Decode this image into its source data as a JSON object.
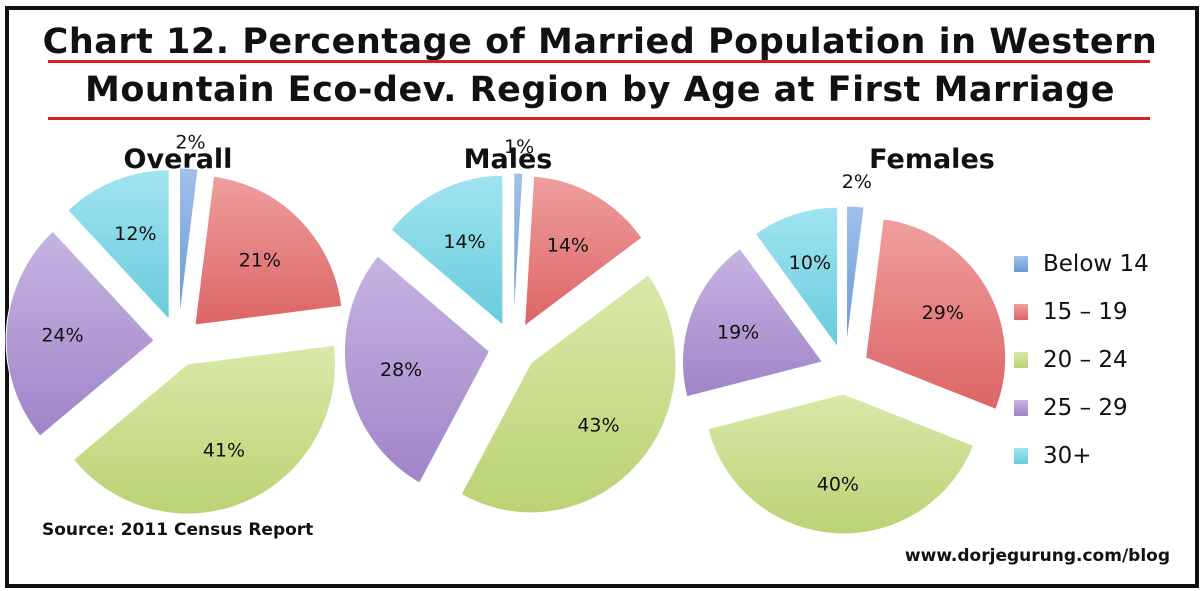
{
  "title_line1": "Chart 12. Percentage of Married Population in Western",
  "title_line2": "Mountain Eco-dev. Region by Age at First Marriage",
  "source": "Source: 2011 Census Report",
  "url": "www.dorjegurung.com/blog",
  "colors": {
    "title_rule": "#d92020",
    "Below 14": "#6f9fe0",
    "15 – 19": "#e86a6a",
    "20 – 24": "#c5dd7a",
    "25 – 29": "#a88bd2",
    "30+": "#6ed6e8"
  },
  "chart_data": [
    {
      "type": "pie",
      "title": "Overall",
      "categories": [
        "Below 14",
        "15 – 19",
        "20 – 24",
        "25 – 29",
        "30+"
      ],
      "values": [
        2,
        21,
        41,
        24,
        12
      ],
      "labels": [
        "2%",
        "21%",
        "41%",
        "24%",
        "12%"
      ],
      "exploded": true
    },
    {
      "type": "pie",
      "title": "Males",
      "categories": [
        "Below 14",
        "15 – 19",
        "20 – 24",
        "25 – 29",
        "30+"
      ],
      "values": [
        1,
        14,
        43,
        28,
        14
      ],
      "labels": [
        "1%",
        "14%",
        "43%",
        "28%",
        "14%"
      ],
      "exploded": true
    },
    {
      "type": "pie",
      "title": "Females",
      "categories": [
        "Below 14",
        "15 – 19",
        "20 – 24",
        "25 – 29",
        "30+"
      ],
      "values": [
        2,
        29,
        40,
        19,
        10
      ],
      "labels": [
        "2%",
        "29%",
        "40%",
        "19%",
        "10%"
      ],
      "exploded": true
    }
  ],
  "legend": {
    "placement": "right",
    "entries": [
      "Below 14",
      "15 – 19",
      "20 – 24",
      "25 – 29",
      "30+"
    ]
  }
}
